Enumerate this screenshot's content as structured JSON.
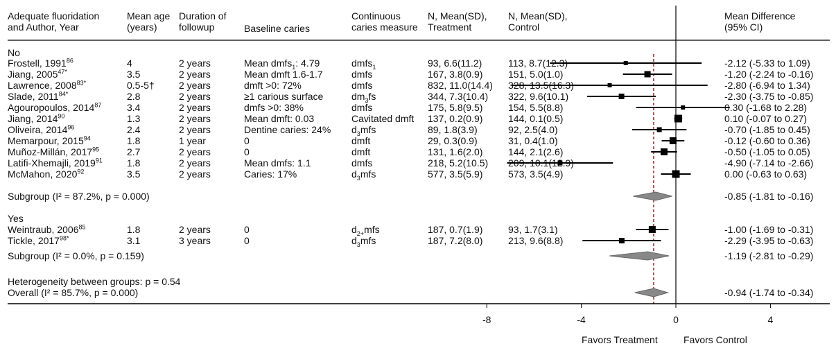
{
  "headers": {
    "c1": "Adequate fluoridation\nand Author, Year",
    "c2": "Mean age\n(years)",
    "c3": "Duration of\nfollowup",
    "c4": "Baseline caries",
    "c5": "Continuous\ncaries measure",
    "c6": "N, Mean(SD),\nTreatment",
    "c7": "N, Mean(SD),\nControl",
    "c8": "Mean Difference\n(95% CI)"
  },
  "groups": [
    {
      "label": "No",
      "subgroup_label": "Subgroup (I² = 87.2%, p = 0.000)",
      "subgroup_ci": "-0.85 (-1.81 to -0.16)"
    },
    {
      "label": "Yes",
      "subgroup_label": "Subgroup (I² = 0.0%, p = 0.159)",
      "subgroup_ci": "-1.19 (-2.81 to -0.29)"
    }
  ],
  "heterogeneity": "Heterogeneity between groups: p = 0.54",
  "overall": {
    "label": "Overall (I² = 85.7%, p = 0.000)",
    "ci": "-0.94 (-1.74 to -0.34)"
  },
  "axis": {
    "ticks": [
      "-8",
      "-4",
      "0",
      "4"
    ],
    "favors_treatment": "Favors Treatment",
    "favors_control": "Favors Control"
  },
  "chart_data": {
    "type": "forest",
    "xlim": [
      -8,
      4
    ],
    "null_line": 0,
    "pooled_line": -0.94,
    "studies": [
      {
        "author": "Frostell, 1991",
        "ref": "86",
        "age": "4",
        "followup": "2 years",
        "baseline_pre": "Mean dmfs",
        "baseline_sub": "1",
        "baseline_post": ": 4.79",
        "measure_pre": "dmfs",
        "measure_sub": "1",
        "measure_post": "",
        "treatment": "93, 6.6(11.2)",
        "control": "113, 8.7(12.3)",
        "ci_text": "-2.12 (-5.33 to 1.09)",
        "md": -2.12,
        "lo": -5.33,
        "hi": 1.09,
        "group": 0
      },
      {
        "author": "Jiang, 2005",
        "ref": "47*",
        "age": "3.5",
        "followup": "2 years",
        "baseline_pre": "Mean dmft 1.6-1.7",
        "baseline_sub": "",
        "baseline_post": "",
        "measure_pre": "dmfs",
        "measure_sub": "",
        "measure_post": "",
        "treatment": "167, 3.8(0.9)",
        "control": "151, 5.0(1.0)",
        "ci_text": "-1.20 (-2.24 to -0.16)",
        "md": -1.2,
        "lo": -2.24,
        "hi": -0.16,
        "group": 0
      },
      {
        "author": "Lawrence, 2008",
        "ref": "83*",
        "age": "0.5-5†",
        "followup": "2 years",
        "baseline_pre": "dmft >0: 72%",
        "baseline_sub": "",
        "baseline_post": "",
        "measure_pre": "dmfs",
        "measure_sub": "",
        "measure_post": "",
        "treatment": "832, 11.0(14.4)",
        "control": "328, 13.5(16.3)",
        "ci_text": "-2.80 (-6.94 to 1.34)",
        "md": -2.8,
        "lo": -6.94,
        "hi": 1.34,
        "group": 0
      },
      {
        "author": "Slade, 2011",
        "ref": "84*",
        "age": "2.8",
        "followup": "2 years",
        "baseline_pre": "≥1 carious surface",
        "baseline_sub": "",
        "baseline_post": "",
        "measure_pre": "dm",
        "measure_sub": "3",
        "measure_post": "fs",
        "treatment": "344, 7.3(10.4)",
        "control": "322, 9.6(10.1)",
        "ci_text": "-2.30 (-3.75 to -0.85)",
        "md": -2.3,
        "lo": -3.75,
        "hi": -0.85,
        "group": 0
      },
      {
        "author": "Agouropoulos, 2014",
        "ref": "87",
        "age": "3.4",
        "followup": "2 years",
        "baseline_pre": "dmfs >0: 38%",
        "baseline_sub": "",
        "baseline_post": "",
        "measure_pre": "dmfs",
        "measure_sub": "",
        "measure_post": "",
        "treatment": "175, 5.8(9.5)",
        "control": "154, 5.5(8.8)",
        "ci_text": "0.30 (-1.68 to 2.28)",
        "md": 0.3,
        "lo": -1.68,
        "hi": 2.28,
        "group": 0
      },
      {
        "author": "Jiang, 2014",
        "ref": "90",
        "age": "1.3",
        "followup": "2 years",
        "baseline_pre": "Mean dmft: 0.03",
        "baseline_sub": "",
        "baseline_post": "",
        "measure_pre": "Cavitated dmft",
        "measure_sub": "",
        "measure_post": "",
        "treatment": "137, 0.2(0.9)",
        "control": "144, 0.1(0.5)",
        "ci_text": "0.10 (-0.07 to 0.27)",
        "md": 0.1,
        "lo": -0.07,
        "hi": 0.27,
        "group": 0
      },
      {
        "author": "Oliveira, 2014",
        "ref": "96",
        "age": "2.4",
        "followup": "2 years",
        "baseline_pre": "Dentine caries: 24%",
        "baseline_sub": "",
        "baseline_post": "",
        "measure_pre": "d",
        "measure_sub": "3",
        "measure_post": "mfs",
        "treatment": "89, 1.8(3.9)",
        "control": "92, 2.5(4.0)",
        "ci_text": "-0.70 (-1.85 to 0.45)",
        "md": -0.7,
        "lo": -1.85,
        "hi": 0.45,
        "group": 0
      },
      {
        "author": "Memarpour, 2015",
        "ref": "94",
        "age": "1.8",
        "followup": "1 year",
        "baseline_pre": "0",
        "baseline_sub": "",
        "baseline_post": "",
        "measure_pre": "dmft",
        "measure_sub": "",
        "measure_post": "",
        "treatment": "29, 0.3(0.9)",
        "control": "31, 0.4(1.0)",
        "ci_text": "-0.12 (-0.60 to 0.36)",
        "md": -0.12,
        "lo": -0.6,
        "hi": 0.36,
        "group": 0
      },
      {
        "author": "Muñoz-Millán, 2017",
        "ref": "95",
        "age": "2.7",
        "followup": "2 years",
        "baseline_pre": "0",
        "baseline_sub": "",
        "baseline_post": "",
        "measure_pre": "dmft",
        "measure_sub": "",
        "measure_post": "",
        "treatment": "131, 1.6(2.0)",
        "control": "144, 2.1(2.6)",
        "ci_text": "-0.50 (-1.05 to 0.05)",
        "md": -0.5,
        "lo": -1.05,
        "hi": 0.05,
        "group": 0
      },
      {
        "author": "Latifi-Xhemajli, 2019",
        "ref": "91",
        "age": "1.8",
        "followup": "2 years",
        "baseline_pre": "Mean dmfs: 1.1",
        "baseline_sub": "",
        "baseline_post": "",
        "measure_pre": "dmfs",
        "measure_sub": "",
        "measure_post": "",
        "treatment": "218, 5.2(10.5)",
        "control": "209, 10.1(12.9)",
        "ci_text": "-4.90 (-7.14 to -2.66)",
        "md": -4.9,
        "lo": -7.14,
        "hi": -2.66,
        "group": 0
      },
      {
        "author": "McMahon, 2020",
        "ref": "92",
        "age": "3.5",
        "followup": "2 years",
        "baseline_pre": "Caries: 17%",
        "baseline_sub": "",
        "baseline_post": "",
        "measure_pre": "d",
        "measure_sub": "3",
        "measure_post": "mfs",
        "treatment": "577, 3.5(5.9)",
        "control": "573, 3.5(4.9)",
        "ci_text": "0.00 (-0.63 to 0.63)",
        "md": 0.0,
        "lo": -0.63,
        "hi": 0.63,
        "group": 0
      },
      {
        "author": "Weintraub, 2006",
        "ref": "85",
        "age": "1.8",
        "followup": "2 years",
        "baseline_pre": "0",
        "baseline_sub": "",
        "baseline_post": "",
        "measure_pre": "d",
        "measure_sub": "2+",
        "measure_post": "mfs",
        "treatment": "187, 0.7(1.9)",
        "control": "93, 1.7(3.1)",
        "ci_text": "-1.00 (-1.69 to -0.31)",
        "md": -1.0,
        "lo": -1.69,
        "hi": -0.31,
        "group": 1
      },
      {
        "author": "Tickle, 2017",
        "ref": "98*",
        "age": "3.1",
        "followup": "3 years",
        "baseline_pre": "0",
        "baseline_sub": "",
        "baseline_post": "",
        "measure_pre": "d",
        "measure_sub": "3",
        "measure_post": "mfs",
        "treatment": "187, 7.2(8.0)",
        "control": "213, 9.6(8.8)",
        "ci_text": "-2.29 (-3.95 to -0.63)",
        "md": -2.29,
        "lo": -3.95,
        "hi": -0.63,
        "group": 1
      }
    ],
    "subgroup_estimates": [
      {
        "md": -0.85,
        "lo": -1.81,
        "hi": -0.16
      },
      {
        "md": -1.19,
        "lo": -2.81,
        "hi": -0.29
      }
    ],
    "overall_estimate": {
      "md": -0.94,
      "lo": -1.74,
      "hi": -0.34
    }
  }
}
